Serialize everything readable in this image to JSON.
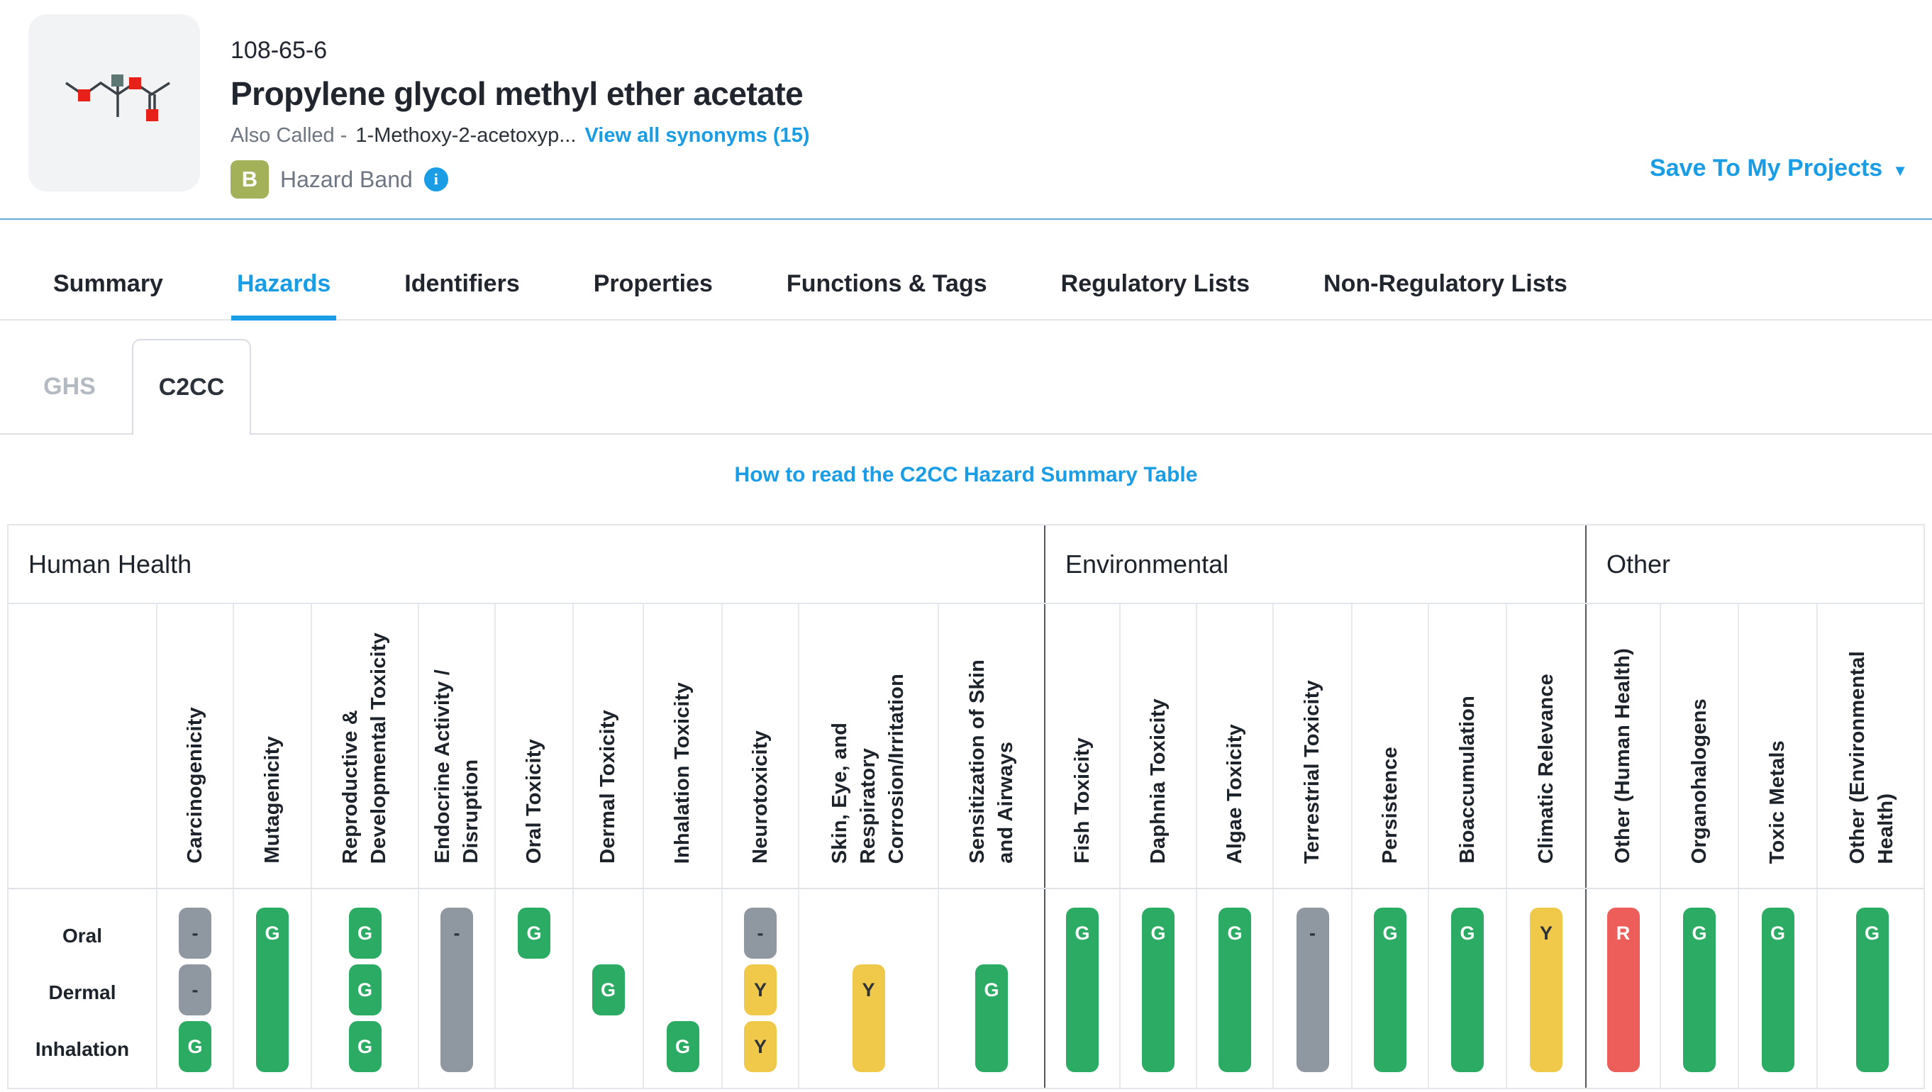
{
  "header": {
    "cas": "108-65-6",
    "name": "Propylene glycol methyl ether acetate",
    "also_called_label": "Also Called -",
    "also_called_value": "1-Methoxy-2-acetoxyp...",
    "synonyms_link": "View all synonyms (15)",
    "hazard_band_letter": "B",
    "hazard_band_label": "Hazard Band",
    "save_button": "Save To My Projects"
  },
  "tabs": {
    "items": [
      "Summary",
      "Hazards",
      "Identifiers",
      "Properties",
      "Functions & Tags",
      "Regulatory Lists",
      "Non-Regulatory Lists"
    ],
    "active": "Hazards"
  },
  "subtabs": {
    "items": [
      "GHS",
      "C2CC"
    ],
    "active": "C2CC"
  },
  "howto_link": "How to read the C2CC Hazard Summary Table",
  "table": {
    "row_labels": [
      "Oral",
      "Dermal",
      "Inhalation"
    ],
    "legend_note": "G=green, Y=yellow, R=red, -=no data (gray); bars span exposure routes",
    "sections": [
      {
        "label": "Human Health",
        "columns": [
          {
            "label": "Carcinogenicity",
            "cells": [
              "-",
              "-",
              "G"
            ]
          },
          {
            "label": "Mutagenicity",
            "bar": {
              "value": "G",
              "rows": [
                0,
                2
              ]
            }
          },
          {
            "label": "Reproductive &\nDevelopmental Toxicity",
            "cells": [
              "G",
              "G",
              "G"
            ]
          },
          {
            "label": "Endocrine Activity /\nDisruption",
            "bar": {
              "value": "-",
              "rows": [
                0,
                2
              ]
            }
          },
          {
            "label": "Oral Toxicity",
            "cells": [
              "G",
              null,
              null
            ]
          },
          {
            "label": "Dermal Toxicity",
            "cells": [
              null,
              "G",
              null
            ]
          },
          {
            "label": "Inhalation Toxicity",
            "cells": [
              null,
              null,
              "G"
            ]
          },
          {
            "label": "Neurotoxicity",
            "cells": [
              "-",
              "Y",
              "Y"
            ]
          },
          {
            "label": "Skin, Eye, and\nRespiratory\nCorrosion/Irritation",
            "bar": {
              "value": "Y",
              "rows": [
                1,
                2
              ]
            }
          },
          {
            "label": "Sensitization of Skin\nand Airways",
            "bar": {
              "value": "G",
              "rows": [
                1,
                2
              ]
            }
          }
        ]
      },
      {
        "label": "Environmental",
        "columns": [
          {
            "label": "Fish Toxicity",
            "bar": {
              "value": "G",
              "rows": [
                0,
                2
              ]
            }
          },
          {
            "label": "Daphnia Toxicity",
            "bar": {
              "value": "G",
              "rows": [
                0,
                2
              ]
            }
          },
          {
            "label": "Algae Toxicity",
            "bar": {
              "value": "G",
              "rows": [
                0,
                2
              ]
            }
          },
          {
            "label": "Terrestrial Toxicity",
            "bar": {
              "value": "-",
              "rows": [
                0,
                2
              ]
            }
          },
          {
            "label": "Persistence",
            "bar": {
              "value": "G",
              "rows": [
                0,
                2
              ]
            }
          },
          {
            "label": "Bioaccumulation",
            "bar": {
              "value": "G",
              "rows": [
                0,
                2
              ]
            }
          },
          {
            "label": "Climatic Relevance",
            "bar": {
              "value": "Y",
              "rows": [
                0,
                2
              ]
            }
          }
        ]
      },
      {
        "label": "Other",
        "columns": [
          {
            "label": "Other (Human Health)",
            "bar": {
              "value": "R",
              "rows": [
                0,
                2
              ]
            }
          },
          {
            "label": "Organohalogens",
            "bar": {
              "value": "G",
              "rows": [
                0,
                2
              ]
            }
          },
          {
            "label": "Toxic Metals",
            "bar": {
              "value": "G",
              "rows": [
                0,
                2
              ]
            }
          },
          {
            "label": "Other (Environmental\nHealth)",
            "bar": {
              "value": "G",
              "rows": [
                0,
                2
              ]
            }
          }
        ]
      }
    ]
  },
  "colors": {
    "green": "#2bab63",
    "yellow": "#f0c94b",
    "red": "#ed5d5a",
    "gray": "#8f97a0",
    "accent_blue": "#1a9de4",
    "hazard_band_olive": "#a3b159",
    "section_divider": "#54585d",
    "grid_line": "#e7eaed"
  }
}
